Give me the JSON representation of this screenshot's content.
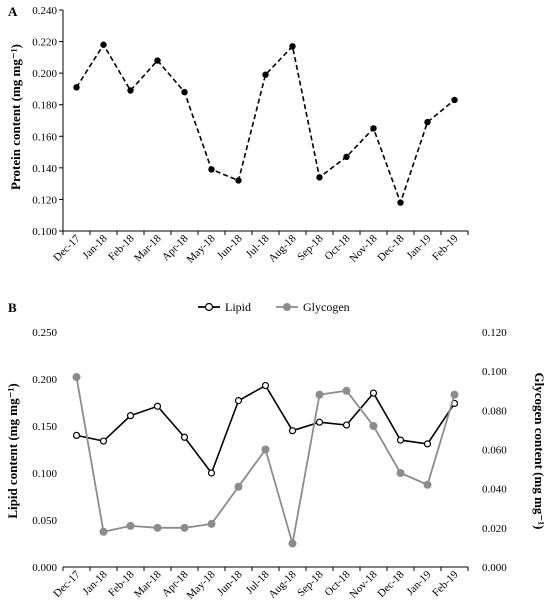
{
  "chart_data": [
    {
      "panel": "A",
      "type": "line",
      "categories": [
        "Dec-17",
        "Jan-18",
        "Feb-18",
        "Mar-18",
        "Apr-18",
        "May-18",
        "Jun-18",
        "Jul-18",
        "Aug-18",
        "Sep-18",
        "Oct-18",
        "Nov-18",
        "Dec-18",
        "Jan-19",
        "Feb-19"
      ],
      "ylabel": "Protein content (mg mg⁻¹)",
      "ylim": [
        0.1,
        0.24
      ],
      "yticks": [
        "0.100",
        "0.120",
        "0.140",
        "0.160",
        "0.180",
        "0.200",
        "0.220",
        "0.240"
      ],
      "series": [
        {
          "values": [
            0.191,
            0.218,
            0.189,
            0.208,
            0.188,
            0.139,
            0.132,
            0.199,
            0.217,
            0.134,
            0.147,
            0.165,
            0.118,
            0.169,
            0.183
          ],
          "color": "#000000",
          "style": "dashed"
        }
      ]
    },
    {
      "panel": "B",
      "type": "line",
      "categories": [
        "Dec-17",
        "Jan-18",
        "Feb-18",
        "Mar-18",
        "Apr-18",
        "May-18",
        "Jun-18",
        "Jul-18",
        "Aug-18",
        "Sep-18",
        "Oct-18",
        "Nov-18",
        "Dec-18",
        "Jan-19",
        "Feb-19"
      ],
      "ylabel": "Lipid content (mg mg⁻¹)",
      "ylabel_right": "Glycogen content (mg mg⁻¹)",
      "ylim": [
        0.0,
        0.25
      ],
      "ylim_right": [
        0.0,
        0.12
      ],
      "yticks": [
        "0.000",
        "0.050",
        "0.100",
        "0.150",
        "0.200",
        "0.250"
      ],
      "yticks_right": [
        "0.000",
        "0.020",
        "0.040",
        "0.060",
        "0.080",
        "0.100",
        "0.120"
      ],
      "legend_position": "top",
      "series": [
        {
          "name": "Lipid",
          "axis": "left",
          "values": [
            0.14,
            0.134,
            0.161,
            0.171,
            0.138,
            0.1,
            0.177,
            0.193,
            0.145,
            0.154,
            0.151,
            0.185,
            0.135,
            0.131,
            0.174
          ],
          "color": "#000000",
          "marker": "open-circle"
        },
        {
          "name": "Glycogen",
          "axis": "right",
          "values": [
            0.097,
            0.018,
            0.021,
            0.02,
            0.02,
            0.022,
            0.041,
            0.06,
            0.012,
            0.088,
            0.09,
            0.072,
            0.048,
            0.042,
            0.088
          ],
          "color": "#8c8c8c",
          "marker": "filled-circle"
        }
      ]
    }
  ]
}
